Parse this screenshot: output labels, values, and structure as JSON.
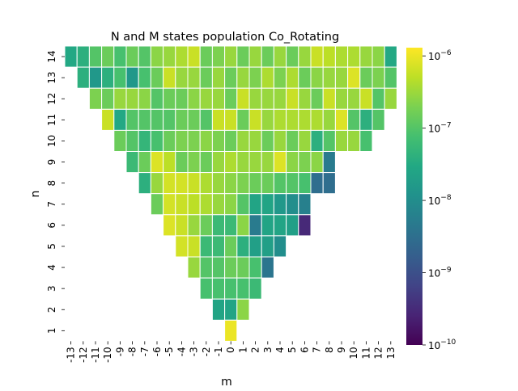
{
  "chart_data": {
    "type": "heatmap",
    "title": "N and M states population Co_Rotating",
    "xlabel": "m",
    "ylabel": "n",
    "x_ticks": [
      "-13",
      "-12",
      "-11",
      "-10",
      "-9",
      "-8",
      "-7",
      "-6",
      "-5",
      "-4",
      "-3",
      "-2",
      "-1",
      "0",
      "1",
      "2",
      "3",
      "4",
      "5",
      "6",
      "7",
      "8",
      "9",
      "10",
      "11",
      "12",
      "13"
    ],
    "y_ticks": [
      "14",
      "13",
      "12",
      "11",
      "10",
      "9",
      "8",
      "7",
      "6",
      "5",
      "4",
      "3",
      "2",
      "1"
    ],
    "colorbar": {
      "scale": "log",
      "range": [
        1e-10,
        1.3e-06
      ],
      "tick_values": [
        1e-10,
        1e-09,
        1e-08,
        1e-07,
        1e-06
      ],
      "tick_bases": [
        "10",
        "10",
        "10",
        "10",
        "10"
      ],
      "tick_exponents": [
        "−10",
        "−9",
        "−8",
        "−7",
        "−6"
      ],
      "colormap": "viridis"
    },
    "rows": [
      {
        "n": 14,
        "m_start": -13,
        "values": [
          3e-08,
          4e-08,
          1e-07,
          1.5e-07,
          8e-08,
          1.5e-07,
          1e-07,
          2.5e-07,
          3e-07,
          4e-07,
          6e-07,
          1.5e-07,
          2e-07,
          3e-07,
          1.5e-07,
          3e-07,
          1.5e-07,
          3e-07,
          1.5e-07,
          3e-07,
          6e-07,
          5e-07,
          4e-07,
          4e-07,
          3e-07,
          2.5e-07,
          3e-08
        ]
      },
      {
        "n": 13,
        "m_start": -12,
        "values": [
          4e-08,
          1.5e-08,
          4e-08,
          8e-08,
          1.5e-08,
          8e-08,
          1.5e-07,
          6e-07,
          3e-07,
          3e-07,
          1.5e-07,
          3e-07,
          1.5e-07,
          3e-07,
          2e-07,
          4e-07,
          2e-07,
          4e-07,
          1.5e-07,
          2.5e-07,
          3e-07,
          3e-07,
          8e-07,
          1.5e-07,
          2e-07,
          1e-07
        ]
      },
      {
        "n": 12,
        "m_start": -11,
        "values": [
          2e-07,
          1.5e-07,
          3e-07,
          3e-07,
          2.5e-07,
          1e-07,
          1.5e-07,
          1.5e-07,
          2.5e-07,
          3e-07,
          3e-07,
          1.5e-07,
          6e-07,
          3e-07,
          3e-07,
          3e-07,
          6e-07,
          3e-07,
          1.5e-07,
          6e-07,
          3e-07,
          3e-07,
          6e-07,
          1e-07,
          3e-07
        ]
      },
      {
        "n": 11,
        "m_start": -10,
        "values": [
          6e-07,
          3e-08,
          1e-07,
          1e-07,
          1e-07,
          1e-07,
          1.5e-07,
          1.5e-07,
          1e-07,
          6e-07,
          6e-07,
          1.5e-07,
          6e-07,
          3e-07,
          4e-07,
          4e-07,
          4e-07,
          4e-07,
          3e-07,
          8e-07,
          1e-07,
          4e-08,
          1e-07
        ]
      },
      {
        "n": 10,
        "m_start": -9,
        "values": [
          1.5e-07,
          1e-07,
          5e-08,
          8e-08,
          1.5e-07,
          2e-07,
          2e-07,
          2.5e-07,
          2e-07,
          1.5e-07,
          3e-07,
          3e-07,
          1.5e-07,
          3e-07,
          1.5e-07,
          3e-07,
          4e-08,
          1e-07,
          3e-07,
          3e-07,
          8e-08
        ]
      },
      {
        "n": 9,
        "m_start": -8,
        "values": [
          6e-08,
          1.5e-07,
          8e-07,
          5e-07,
          1.5e-07,
          2e-07,
          1.5e-07,
          3e-07,
          4e-07,
          3e-07,
          3e-07,
          3e-07,
          8e-07,
          2.5e-07,
          2e-07,
          2.5e-07,
          5e-09
        ]
      },
      {
        "n": 8,
        "m_start": -7,
        "values": [
          4e-08,
          3e-07,
          7e-07,
          7e-07,
          6e-07,
          4e-07,
          3e-07,
          2.5e-07,
          2e-07,
          1.5e-07,
          1.5e-07,
          1e-07,
          1e-07,
          8e-08,
          3e-09,
          3e-09
        ]
      },
      {
        "n": 7,
        "m_start": -6,
        "values": [
          1.5e-07,
          7e-07,
          6e-07,
          5e-07,
          4e-07,
          3e-07,
          2.5e-07,
          1e-07,
          2.5e-08,
          2.5e-08,
          1.5e-08,
          1e-08,
          6e-09
        ]
      },
      {
        "n": 6,
        "m_start": -5,
        "values": [
          8e-07,
          6e-07,
          3e-07,
          1.5e-07,
          6e-08,
          6e-08,
          2.5e-07,
          5e-09,
          2.5e-08,
          2.5e-08,
          2e-08,
          3e-10
        ]
      },
      {
        "n": 5,
        "m_start": -4,
        "values": [
          7e-07,
          6e-07,
          6e-08,
          6e-08,
          1.5e-07,
          4e-08,
          2e-08,
          2e-08,
          1e-08
        ]
      },
      {
        "n": 4,
        "m_start": -3,
        "values": [
          3e-07,
          1e-07,
          1e-07,
          1.5e-07,
          1.5e-07,
          8e-08,
          4e-09
        ]
      },
      {
        "n": 3,
        "m_start": -2,
        "values": [
          8e-08,
          8e-08,
          8e-08,
          8e-08,
          6e-08
        ]
      },
      {
        "n": 2,
        "m_start": -1,
        "values": [
          2.5e-08,
          2.5e-08,
          2.5e-07
        ]
      },
      {
        "n": 1,
        "m_start": 0,
        "values": [
          1e-06
        ]
      }
    ]
  }
}
